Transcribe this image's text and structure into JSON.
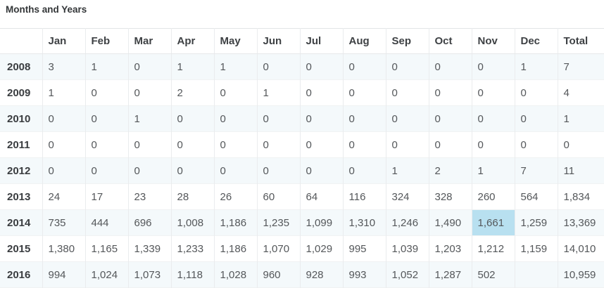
{
  "title": "Months and Years",
  "table": {
    "columns": [
      "",
      "Jan",
      "Feb",
      "Mar",
      "Apr",
      "May",
      "Jun",
      "Jul",
      "Aug",
      "Sep",
      "Oct",
      "Nov",
      "Dec",
      "Total"
    ],
    "rows": [
      {
        "year": "2008",
        "values": [
          "3",
          "1",
          "0",
          "1",
          "1",
          "0",
          "0",
          "0",
          "0",
          "0",
          "0",
          "1"
        ],
        "total": "7"
      },
      {
        "year": "2009",
        "values": [
          "1",
          "0",
          "0",
          "2",
          "0",
          "1",
          "0",
          "0",
          "0",
          "0",
          "0",
          "0"
        ],
        "total": "4"
      },
      {
        "year": "2010",
        "values": [
          "0",
          "0",
          "1",
          "0",
          "0",
          "0",
          "0",
          "0",
          "0",
          "0",
          "0",
          "0"
        ],
        "total": "1"
      },
      {
        "year": "2011",
        "values": [
          "0",
          "0",
          "0",
          "0",
          "0",
          "0",
          "0",
          "0",
          "0",
          "0",
          "0",
          "0"
        ],
        "total": "0"
      },
      {
        "year": "2012",
        "values": [
          "0",
          "0",
          "0",
          "0",
          "0",
          "0",
          "0",
          "0",
          "1",
          "2",
          "1",
          "7"
        ],
        "total": "11"
      },
      {
        "year": "2013",
        "values": [
          "24",
          "17",
          "23",
          "28",
          "26",
          "60",
          "64",
          "116",
          "324",
          "328",
          "260",
          "564"
        ],
        "total": "1,834"
      },
      {
        "year": "2014",
        "values": [
          "735",
          "444",
          "696",
          "1,008",
          "1,186",
          "1,235",
          "1,099",
          "1,310",
          "1,246",
          "1,490",
          "1,661",
          "1,259"
        ],
        "total": "13,369"
      },
      {
        "year": "2015",
        "values": [
          "1,380",
          "1,165",
          "1,339",
          "1,233",
          "1,186",
          "1,070",
          "1,029",
          "995",
          "1,039",
          "1,203",
          "1,212",
          "1,159"
        ],
        "total": "14,010"
      },
      {
        "year": "2016",
        "values": [
          "994",
          "1,024",
          "1,073",
          "1,118",
          "1,028",
          "960",
          "928",
          "993",
          "1,052",
          "1,287",
          "502",
          ""
        ],
        "total": "10,959"
      }
    ],
    "highlighted_cell": {
      "year": "2014",
      "month": "Nov",
      "value": "1,661"
    }
  },
  "colors": {
    "highlight": "#b8e0f0",
    "row_stripe": "#f4f9fb"
  }
}
